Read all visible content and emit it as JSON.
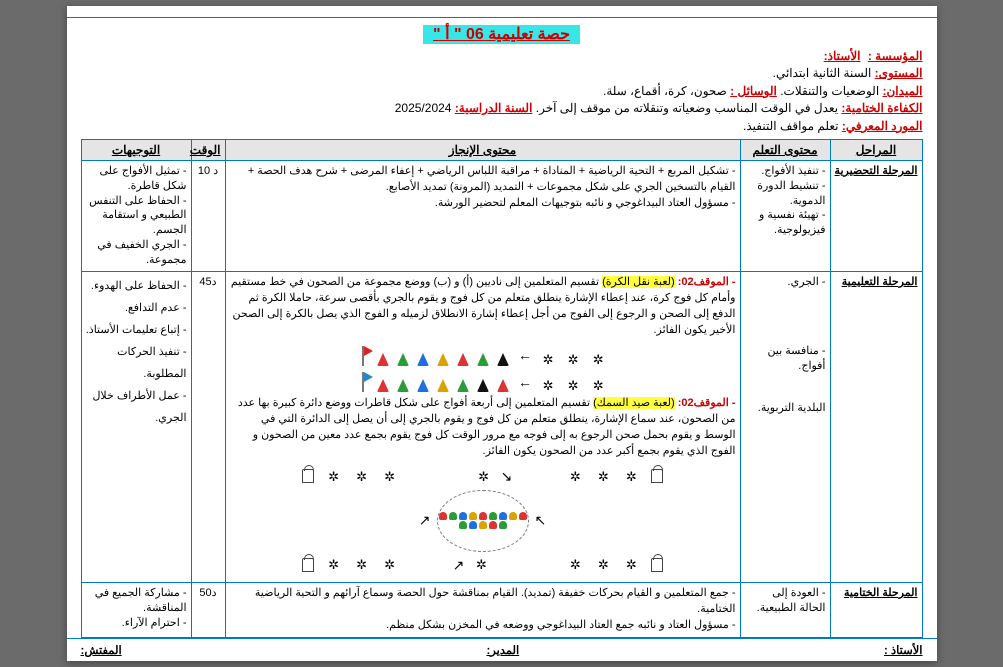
{
  "title": "حصة تعليمية 06 \" أ \"",
  "header": {
    "l1a": "المؤسسة :",
    "l1b": "الأستاذ:",
    "l2a": "المستوى:",
    "l2b": "السنة الثانية ابتدائي.",
    "l3a": "الميدان:",
    "l3b": "الوضعيات والتنقلات.",
    "l3c": "الوسائل :",
    "l3d": "صحون، كرة، أقماع، سلة.",
    "l4a": "الكفاءة الختامية:",
    "l4b": "يعدل في الوقت المناسب وضعياته وتنقلاته من موقف إلى آخر.",
    "l4c": "السنة الدراسية:",
    "l4d": " 2025/2024",
    "l5a": "المورد المعرفي:",
    "l5b": "تعلم مواقف التنفيذ."
  },
  "columns": {
    "phase": "المراحل",
    "learn": "محتوى التعلم",
    "body": "محتوى الإنجاز",
    "time": "الوقت",
    "tips": "التوجيهات"
  },
  "row1": {
    "phase": "المرحلة التحضيرية",
    "learn": "- تنفيذ الأفواج.\n- تنشيط الدورة الدموية.\n- تهيئة نفسية و فيزيولوجية.",
    "body": "- تشكيل المربع + التحية الرياضية + المناداة + مراقبة اللباس الرياضي + إعفاء المرضى + شرح هدف الحصة + القيام بالتسخين الجري على شكل مجموعات + التمديد (المرونة) تمديد الأصابع.\n- مسؤول العتاد البيداغوجي و نائبه بتوجيهات المعلم لتحضير الورشة.",
    "time": "10 د",
    "tips": "- تمثيل الأفواج على شكل قاطرة.\n- الحفاظ على التنفس الطبيعي و استقامة الجسم.\n- الجري الخفيف في مجموعة."
  },
  "row2": {
    "phase": "المرحلة التعليمية",
    "learn1": "- الجري.",
    "learn2": "- منافسة بين أفواج.",
    "learn3": "البلدية التربوية.",
    "situ1_lead": "- الموقف02: ",
    "situ1_hl": "(لعبة نقل الكرة)",
    "situ1_txt": " تقسيم المتعلمين إلى ناديين (أ) و (ب) ووضع مجموعة من الصحون في خط مستقيم وأمام كل فوج كرة، عند إعطاء الإشارة ينطلق متعلم من كل فوج و يقوم بالجري بأقصى سرعة، حاملا الكرة ثم الدفع إلى الصحن و الرجوع إلى الفوج من أجل إعطاء إشارة الانطلاق لزميله و الفوج الذي يصل بالكرة إلى الصحن الأخير يكون الفائز.",
    "situ2_lead": "- الموقف02: ",
    "situ2_hl": "(لعبة صيد السمك)",
    "situ2_txt": " تقسيم المتعلمين إلى أربعة أفواج على شكل قاطرات ووضع دائرة كبيرة بها عدد من الصحون، عند سماع الإشارة، ينطلق متعلم من كل فوج و يقوم بالجري إلى أن يصل إلى الدائرة التي في الوسط و يقوم بحمل صحن الرجوع به إلى فوجه مع مرور الوقت كل فوج يقوم بجمع عدد معين من الصحون و الفوج الذي يقوم بجمع أكبر عدد من الصحون يكون الفائز.",
    "time": "45د",
    "tips": "- الحفاظ على الهدوء.\n- عدم التدافع.\n- إتباع تعليمات الأستاذ.\n- تنفيذ الحركات المطلوبة.\n- عمل الأطراف خلال الجري."
  },
  "row3": {
    "phase": "المرحلة الختامية",
    "learn": "- العودة إلى الحالة الطبيعية.",
    "body": "- جمع المتعلمين و القيام بحركات خفيفة (تمديد). القيام بمناقشة حول الحصة وسماع آرائهم و التحية الرياضية الختامية.\n- مسؤول العتاد و نائبه جمع العتاد البيداغوجي ووضعه في المخزن بشكل منظم.",
    "time": "5د0",
    "tips": "- مشاركة الجميع في المناقشة.\n- احترام الآراء."
  },
  "footer": {
    "a": "الأستاذ :",
    "b": "المدير:",
    "c": "المفتش:"
  },
  "colors": {
    "cones1": [
      "#d33",
      "#2a9d3a",
      "#1f6fe0",
      "#d9a400",
      "#d33",
      "#2a9d3a",
      "#111"
    ],
    "cones2": [
      "#d33",
      "#2a9d3a",
      "#1f6fe0",
      "#d9a400",
      "#2a9d3a",
      "#111",
      "#d33"
    ],
    "dots": [
      "#d33",
      "#2a9d3a",
      "#1f6fe0",
      "#d9a400",
      "#d33",
      "#2a9d3a",
      "#1f6fe0",
      "#d9a400",
      "#d33",
      "#2a9d3a",
      "#1f6fe0",
      "#d9a400",
      "#d33",
      "#2a9d3a"
    ]
  }
}
